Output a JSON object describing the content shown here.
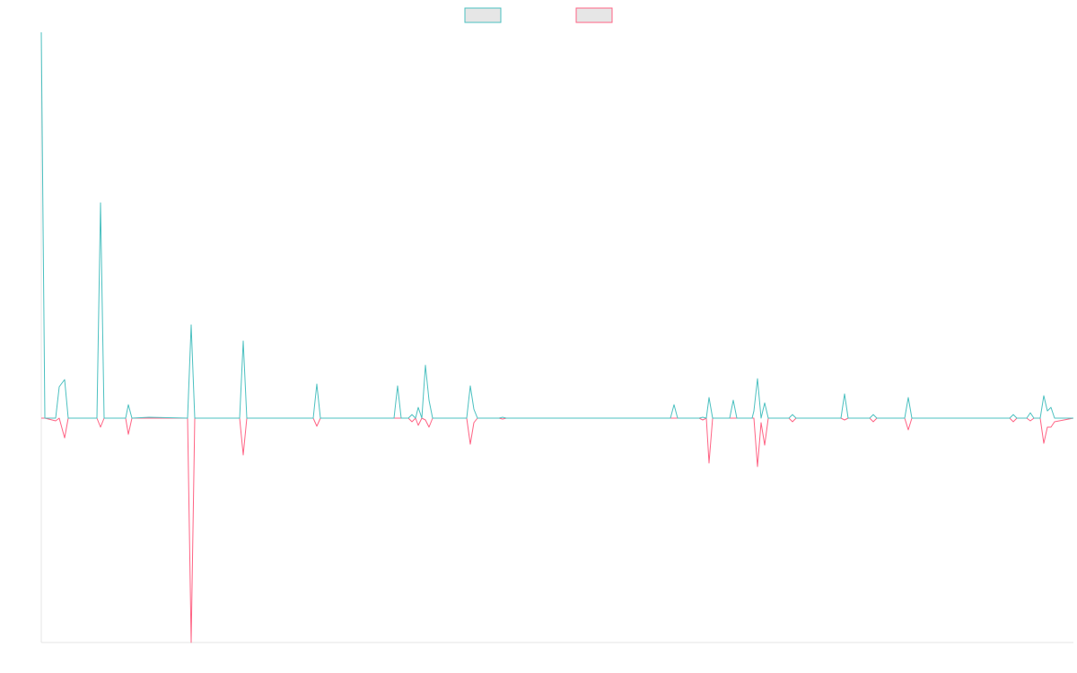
{
  "chart_data": {
    "type": "line",
    "x": [
      0,
      4,
      16,
      20,
      26,
      30,
      62,
      66,
      70,
      94,
      97,
      101,
      120,
      163,
      167,
      171,
      221,
      225,
      229,
      303,
      307,
      311,
      393,
      397,
      401,
      409,
      413,
      417,
      420,
      424,
      428,
      432,
      436,
      474,
      478,
      482,
      486,
      510,
      514,
      518,
      701,
      705,
      709,
      733,
      737,
      741,
      744,
      748,
      767,
      771,
      775,
      792,
      794,
      798,
      802,
      806,
      810,
      833,
      837,
      841,
      891,
      895,
      899,
      923,
      927,
      931,
      962,
      966,
      970,
      1079,
      1083,
      1087,
      1098,
      1102,
      1106,
      1113,
      1117,
      1121,
      1125,
      1129,
      1150
    ],
    "series": [
      {
        "color": "#4bc0c0",
        "values": [
          430,
          0,
          0,
          35,
          43,
          0,
          0,
          240,
          0,
          0,
          15,
          0,
          1,
          0,
          104,
          0,
          0,
          86,
          0,
          0,
          38,
          0,
          0,
          36,
          0,
          0,
          4,
          0,
          12,
          0,
          59,
          20,
          0,
          0,
          36,
          10,
          0,
          0,
          1,
          0,
          0,
          15,
          0,
          0,
          1,
          0,
          23,
          0,
          0,
          20,
          0,
          0,
          8,
          44,
          0,
          17,
          0,
          0,
          4,
          0,
          0,
          27,
          0,
          0,
          4,
          0,
          0,
          23,
          0,
          0,
          4,
          0,
          0,
          6,
          0,
          0,
          25,
          8,
          12,
          0,
          0
        ]
      },
      {
        "color": "#ff6384",
        "values": [
          0,
          0,
          -3,
          0,
          -22,
          0,
          0,
          -10,
          0,
          0,
          -18,
          0,
          0,
          0,
          -250,
          0,
          0,
          -41,
          0,
          0,
          -9,
          0,
          0,
          0,
          0,
          0,
          -4,
          0,
          -8,
          0,
          -2,
          -10,
          0,
          0,
          -29,
          -5,
          0,
          0,
          -1,
          0,
          0,
          0,
          0,
          0,
          -2,
          0,
          -50,
          0,
          0,
          0,
          0,
          0,
          0,
          -54,
          -5,
          -30,
          0,
          0,
          -4,
          0,
          0,
          -2,
          0,
          0,
          -4,
          0,
          0,
          -13,
          0,
          0,
          -4,
          0,
          0,
          -3,
          0,
          0,
          -28,
          -10,
          -10,
          -4,
          0
        ]
      }
    ],
    "xlim": [
      0,
      1150
    ],
    "ylim": [
      -250,
      430
    ],
    "legend": "top"
  }
}
